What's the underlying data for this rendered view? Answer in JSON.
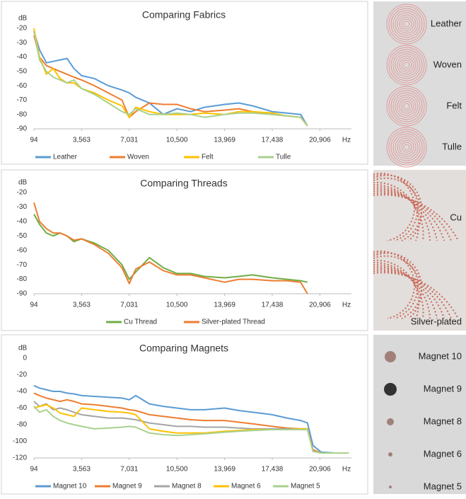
{
  "chart_data": [
    {
      "type": "line",
      "title": "Comparing Fabrics",
      "y_label": "dB",
      "x_label": "Hz",
      "x": [
        94,
        500,
        1000,
        1500,
        2000,
        2500,
        3000,
        3563,
        4500,
        5500,
        6500,
        7031,
        7500,
        8500,
        9500,
        10500,
        11500,
        12500,
        13969,
        15000,
        16000,
        17438,
        18500,
        19500,
        20000
      ],
      "series": [
        {
          "name": "Leather",
          "color": "#5b9bd5",
          "values": [
            -22,
            -35,
            -44,
            -43,
            -42,
            -41,
            -48,
            -53,
            -55,
            -60,
            -63,
            -65,
            -68,
            -72,
            -80,
            -76,
            -78,
            -75,
            -73,
            -72,
            -74,
            -78,
            -79,
            -80,
            -88
          ]
        },
        {
          "name": "Woven",
          "color": "#ed7d31",
          "values": [
            -25,
            -40,
            -46,
            -48,
            -50,
            -52,
            -54,
            -56,
            -60,
            -65,
            -70,
            -82,
            -78,
            -72,
            -73,
            -73,
            -76,
            -78,
            -77,
            -76,
            -78,
            -80,
            -81,
            -82,
            -88
          ]
        },
        {
          "name": "Felt",
          "color": "#ffc000",
          "values": [
            -20,
            -40,
            -52,
            -48,
            -55,
            -58,
            -58,
            -62,
            -65,
            -70,
            -74,
            -82,
            -75,
            -78,
            -80,
            -80,
            -80,
            -79,
            -80,
            -78,
            -78,
            -79,
            -81,
            -82,
            -88
          ]
        },
        {
          "name": "Tulle",
          "color": "#a9d18e",
          "values": [
            -22,
            -42,
            -50,
            -54,
            -56,
            -58,
            -56,
            -62,
            -66,
            -72,
            -78,
            -80,
            -76,
            -80,
            -80,
            -79,
            -80,
            -82,
            -80,
            -79,
            -79,
            -80,
            -81,
            -82,
            -88
          ]
        }
      ],
      "xlim": [
        94,
        23200
      ],
      "xticks": [
        94,
        {
          "value": 3563,
          "label": "3,563"
        },
        {
          "value": 7031,
          "label": "7,031"
        },
        {
          "value": 10500,
          "label": "10,500"
        },
        {
          "value": 13969,
          "label": "13,969"
        },
        {
          "value": 17438,
          "label": "17,438"
        },
        {
          "value": 20906,
          "label": "20,906"
        }
      ],
      "ylim": [
        -90,
        -20
      ],
      "yticks": [
        -20,
        -30,
        -40,
        -50,
        -60,
        -70,
        -80,
        -90
      ],
      "grid": false,
      "legend": "bottom"
    },
    {
      "type": "line",
      "title": "Comparing Threads",
      "y_label": "dB",
      "x_label": "Hz",
      "x": [
        94,
        500,
        1000,
        1500,
        2000,
        2500,
        3000,
        3563,
        4500,
        5500,
        6500,
        7031,
        7500,
        8500,
        9500,
        10500,
        11500,
        12500,
        13969,
        15000,
        16000,
        17438,
        18500,
        19500,
        20000
      ],
      "series": [
        {
          "name": "Cu Thread",
          "color": "#70ad47",
          "values": [
            -35,
            -42,
            -48,
            -50,
            -48,
            -50,
            -54,
            -52,
            -55,
            -60,
            -70,
            -80,
            -75,
            -65,
            -72,
            -76,
            -76,
            -78,
            -79,
            -78,
            -77,
            -79,
            -80,
            -81,
            -82
          ]
        },
        {
          "name": "Silver-plated Thread",
          "color": "#ed7d31",
          "values": [
            -27,
            -40,
            -45,
            -48,
            -48,
            -50,
            -53,
            -52,
            -56,
            -62,
            -72,
            -83,
            -73,
            -68,
            -74,
            -77,
            -77,
            -79,
            -82,
            -80,
            -80,
            -81,
            -81,
            -82,
            -90
          ]
        }
      ],
      "xlim": [
        94,
        23200
      ],
      "xticks": [
        94,
        {
          "value": 3563,
          "label": "3,563"
        },
        {
          "value": 7031,
          "label": "7,031"
        },
        {
          "value": 10500,
          "label": "10,500"
        },
        {
          "value": 13969,
          "label": "13,969"
        },
        {
          "value": 17438,
          "label": "17,438"
        },
        {
          "value": 20906,
          "label": "20,906"
        }
      ],
      "ylim": [
        -90,
        -20
      ],
      "yticks": [
        -20,
        -30,
        -40,
        -50,
        -60,
        -70,
        -80,
        -90
      ],
      "grid": false,
      "legend": "bottom"
    },
    {
      "type": "line",
      "title": "Comparing Magnets",
      "y_label": "dB",
      "x_label": "Hz",
      "x": [
        94,
        500,
        1000,
        1500,
        2000,
        2500,
        3000,
        3563,
        4500,
        5500,
        6500,
        7031,
        7500,
        8500,
        9500,
        10500,
        11500,
        12500,
        13969,
        15000,
        16000,
        17438,
        18500,
        19500,
        20000,
        20400,
        21000,
        22000,
        23000
      ],
      "series": [
        {
          "name": "Magnet 10",
          "color": "#5b9bd5",
          "values": [
            -33,
            -36,
            -38,
            -40,
            -40,
            -42,
            -43,
            -45,
            -46,
            -47,
            -48,
            -50,
            -45,
            -55,
            -58,
            -60,
            -62,
            -62,
            -60,
            -63,
            -65,
            -68,
            -72,
            -75,
            -78,
            -105,
            -113,
            -114,
            -114
          ]
        },
        {
          "name": "Magnet 9",
          "color": "#ed7d31",
          "values": [
            -42,
            -45,
            -48,
            -50,
            -52,
            -50,
            -52,
            -55,
            -56,
            -58,
            -60,
            -62,
            -63,
            -68,
            -70,
            -72,
            -74,
            -75,
            -75,
            -77,
            -79,
            -82,
            -84,
            -85,
            -85,
            -110,
            -114,
            -114,
            -114
          ]
        },
        {
          "name": "Magnet 8",
          "color": "#a5a5a5",
          "values": [
            -52,
            -58,
            -55,
            -62,
            -60,
            -62,
            -65,
            -68,
            -70,
            -72,
            -72,
            -73,
            -74,
            -78,
            -80,
            -82,
            -82,
            -83,
            -83,
            -84,
            -85,
            -85,
            -85,
            -85,
            -85,
            -112,
            -114,
            -114,
            -114
          ]
        },
        {
          "name": "Magnet 6",
          "color": "#ffc000",
          "values": [
            -60,
            -58,
            -56,
            -60,
            -66,
            -68,
            -70,
            -60,
            -62,
            -64,
            -65,
            -66,
            -68,
            -85,
            -88,
            -90,
            -90,
            -90,
            -88,
            -87,
            -86,
            -86,
            -86,
            -85,
            -85,
            -112,
            -114,
            -114,
            -114
          ]
        },
        {
          "name": "Magnet 5",
          "color": "#a9d18e",
          "values": [
            -58,
            -65,
            -62,
            -70,
            -75,
            -78,
            -80,
            -82,
            -85,
            -84,
            -83,
            -82,
            -83,
            -90,
            -92,
            -93,
            -92,
            -91,
            -89,
            -88,
            -87,
            -86,
            -86,
            -86,
            -86,
            -112,
            -114,
            -114,
            -114
          ]
        }
      ],
      "xlim": [
        94,
        23200
      ],
      "xticks": [
        94,
        {
          "value": 3563,
          "label": "3,563"
        },
        {
          "value": 7031,
          "label": "7,031"
        },
        {
          "value": 10500,
          "label": "10,500"
        },
        {
          "value": 13969,
          "label": "13,969"
        },
        {
          "value": 17438,
          "label": "17,438"
        },
        {
          "value": 20906,
          "label": "20,906"
        }
      ],
      "ylim": [
        -120,
        0
      ],
      "yticks": [
        0,
        -20,
        -40,
        -60,
        -80,
        -100,
        -120
      ],
      "grid": false,
      "legend": "bottom"
    }
  ],
  "photo_labels": [
    [
      "Leather",
      "Woven",
      "Felt",
      "Tulle"
    ],
    [
      "Cu",
      "Silver-plated"
    ],
    [
      "Magnet 10",
      "Magnet 9",
      "Magnet 8",
      "Magnet 6",
      "Magnet 5"
    ]
  ]
}
